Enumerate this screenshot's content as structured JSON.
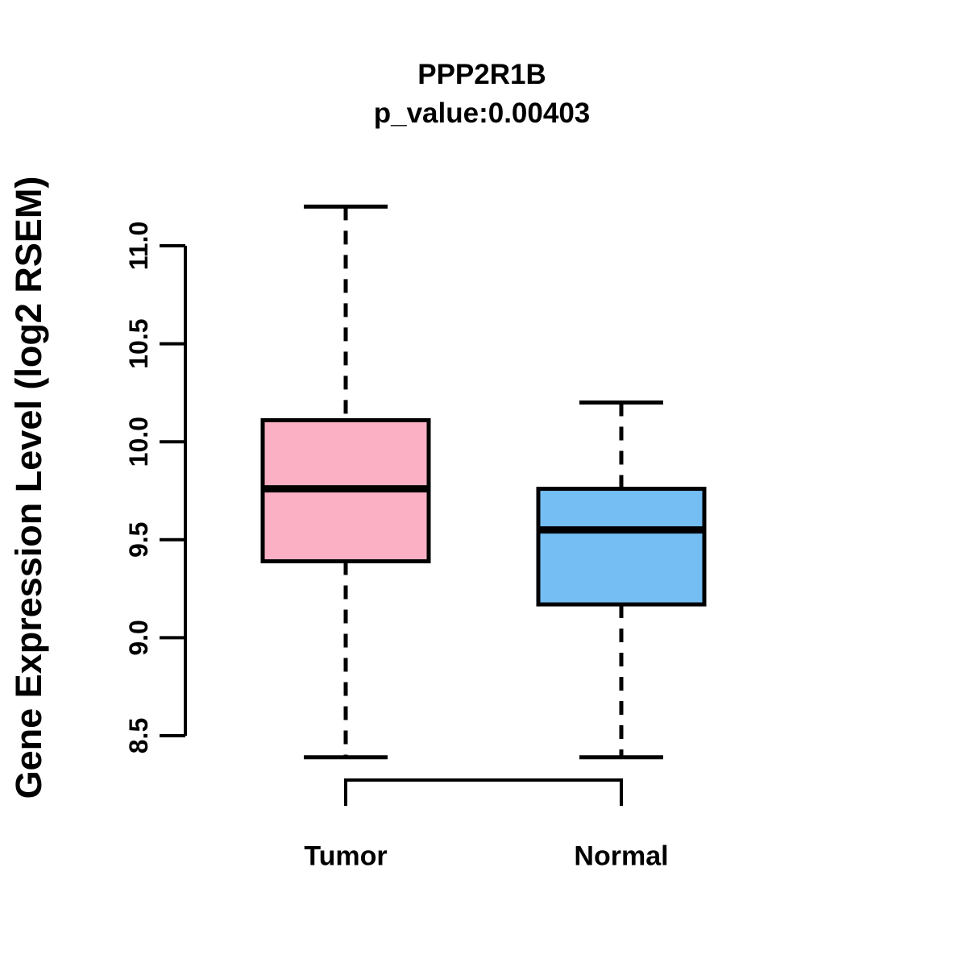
{
  "chart_data": {
    "type": "boxplot",
    "title": "PPP2R1B",
    "subtitle": "p_value:0.00403",
    "ylabel": "Gene Expression Level (log2 RSEM)",
    "xlabel": "",
    "categories": [
      "Tumor",
      "Normal"
    ],
    "ylim": [
      8.5,
      11.0
    ],
    "ytick_values": [
      8.5,
      9.0,
      9.5,
      10.0,
      10.5,
      11.0
    ],
    "ytick_labels": [
      "8.5",
      "9.0",
      "9.5",
      "10.0",
      "10.5",
      "11.0"
    ],
    "grid": false,
    "legend": "none",
    "series": [
      {
        "name": "Tumor",
        "fill_color": "#FCB0C3",
        "whisker_low": 8.39,
        "q1": 9.39,
        "median": 9.76,
        "q3": 10.11,
        "whisker_high": 11.2
      },
      {
        "name": "Normal",
        "fill_color": "#74BEF4",
        "whisker_low": 8.39,
        "q1": 9.17,
        "median": 9.55,
        "q3": 9.76,
        "whisker_high": 10.2
      }
    ],
    "stroke_color": "#000000",
    "comparison_bracket_between": [
      "Tumor",
      "Normal"
    ]
  }
}
